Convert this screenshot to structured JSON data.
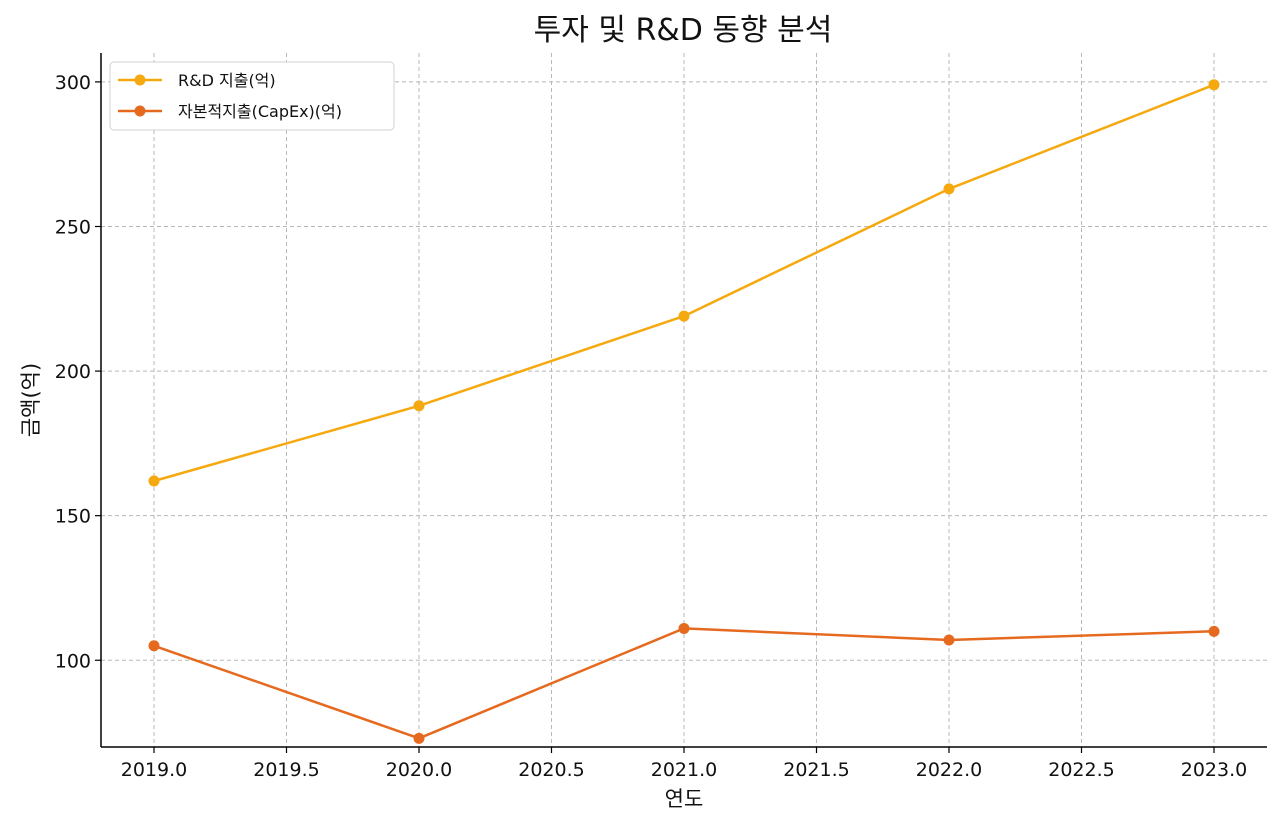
{
  "chart_data": {
    "type": "line",
    "title": "투자 및 R&D 동향 분석",
    "xlabel": "연도",
    "ylabel": "금액(억)",
    "x": [
      2019,
      2020,
      2021,
      2022,
      2023
    ],
    "xlim": [
      2018.8,
      2023.2
    ],
    "ylim": [
      70,
      310
    ],
    "xticks": [
      2019.0,
      2019.5,
      2020.0,
      2020.5,
      2021.0,
      2021.5,
      2022.0,
      2022.5,
      2023.0
    ],
    "xtick_labels": [
      "2019.0",
      "2019.5",
      "2020.0",
      "2020.5",
      "2021.0",
      "2021.5",
      "2022.0",
      "2022.5",
      "2023.0"
    ],
    "yticks": [
      100,
      150,
      200,
      250,
      300
    ],
    "ytick_labels": [
      "100",
      "150",
      "200",
      "250",
      "300"
    ],
    "grid": true,
    "legend_position": "top-left",
    "series": [
      {
        "name": "R&D 지출(억)",
        "color": "#F5A90F",
        "values": [
          162,
          188,
          219,
          263,
          299
        ]
      },
      {
        "name": "자본적지출(CapEx)(억)",
        "color": "#E56A1F",
        "values": [
          105,
          73,
          111,
          107,
          110
        ]
      }
    ]
  }
}
